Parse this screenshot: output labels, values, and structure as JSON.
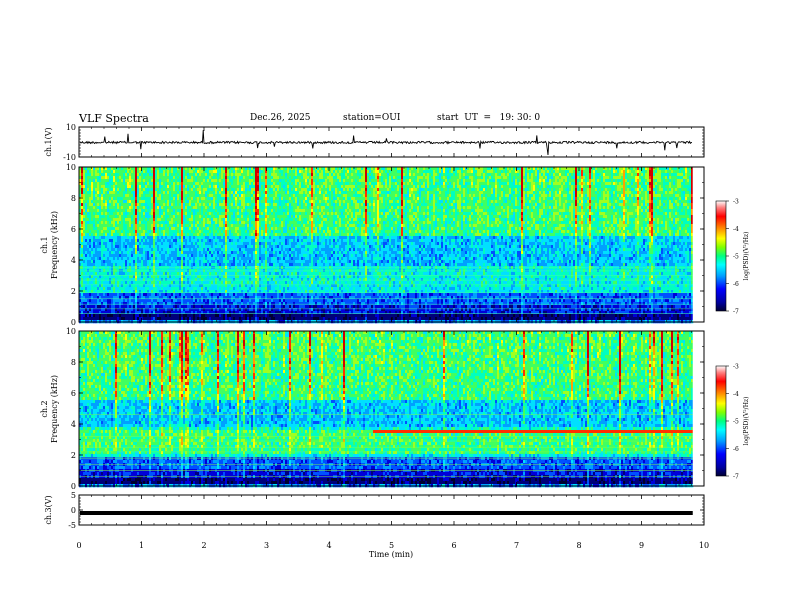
{
  "header": {
    "title": "VLF Spectra",
    "date": "Dec.26, 2025",
    "station": "station=OUI",
    "start": "start  UT  =   19: 30: 0"
  },
  "chart_data": [
    {
      "type": "line",
      "name": "ch1-waveform",
      "ylabel": "ch.1(V)",
      "ylim": [
        -10,
        10
      ],
      "yticks": [
        "10",
        "-10"
      ],
      "baseline": 0,
      "description_series": "noisy waveform around -0 V with sporadic spikes"
    },
    {
      "type": "heatmap",
      "name": "ch1-spectrogram",
      "ylabel": [
        "ch.1",
        "Frequency (kHz)"
      ],
      "ylim": [
        0,
        10
      ],
      "yticks": [
        "0",
        "2",
        "4",
        "6",
        "8",
        "10"
      ],
      "xlim": [
        0,
        10
      ],
      "colorbar": {
        "label": "log(PSD)(V²/Hz)",
        "range": [
          -7,
          -3
        ],
        "ticks": [
          "-3",
          "-4",
          "-5",
          "-6",
          "-7"
        ]
      }
    },
    {
      "type": "heatmap",
      "name": "ch2-spectrogram",
      "ylabel": [
        "ch.2",
        "Frequency (kHz)"
      ],
      "ylim": [
        0,
        10
      ],
      "yticks": [
        "0",
        "2",
        "4",
        "6",
        "8",
        "10"
      ],
      "xlim": [
        0,
        10
      ],
      "colorbar": {
        "label": "log(PSD)(V²/Hz)",
        "range": [
          -7,
          -3
        ],
        "ticks": [
          "-3",
          "-4",
          "-5",
          "-6",
          "-7"
        ]
      },
      "feature": {
        "narrowband_line_khz": 3.5,
        "starts_at_min": 4.7
      }
    },
    {
      "type": "line",
      "name": "ch3-waveform",
      "ylabel": "ch.3(V)",
      "ylim": [
        -5,
        5
      ],
      "yticks": [
        "5",
        "0",
        "-5"
      ],
      "level": -1.0,
      "xlabel": "Time (min)",
      "xlim": [
        0,
        10
      ],
      "xticks": [
        "0",
        "1",
        "2",
        "3",
        "4",
        "5",
        "6",
        "7",
        "8",
        "9",
        "10"
      ],
      "data_end_min": 9.82
    }
  ],
  "colors": {
    "colormap": [
      "#000033",
      "#00008c",
      "#0000ff",
      "#00a0ff",
      "#00ffff",
      "#00ff80",
      "#80ff00",
      "#ffff00",
      "#ff8000",
      "#ff0000",
      "#ffffff"
    ]
  }
}
